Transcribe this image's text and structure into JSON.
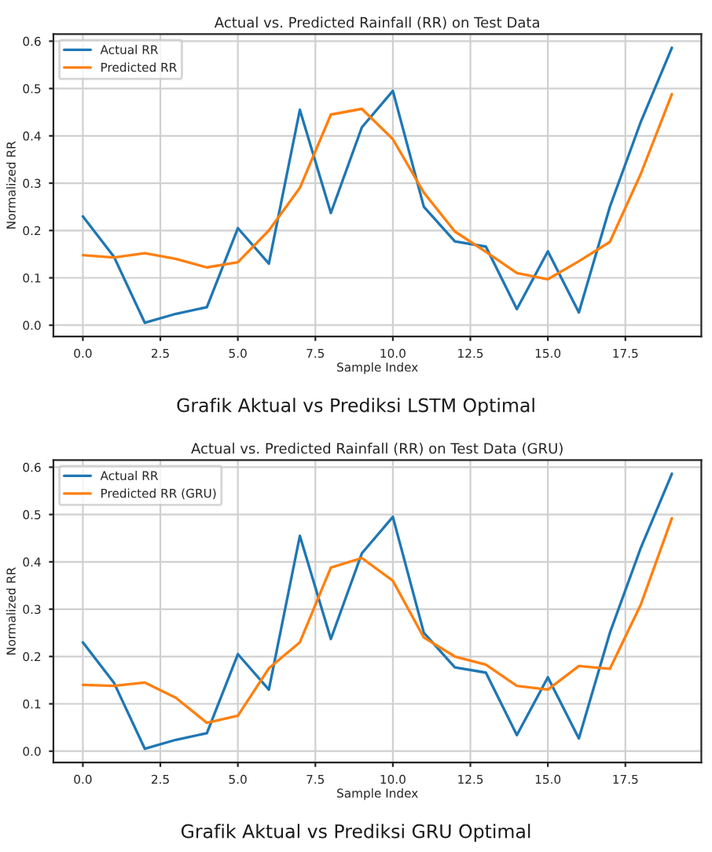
{
  "chart_data": [
    {
      "type": "line",
      "title": "Actual vs. Predicted Rainfall (RR) on Test Data",
      "xlabel": "Sample Index",
      "ylabel": "Normalized RR",
      "annotations": [
        "Grafik Aktual vs Prediksi LSTM Optimal"
      ],
      "x": [
        0,
        1,
        2,
        3,
        4,
        5,
        6,
        7,
        8,
        9,
        10,
        11,
        12,
        13,
        14,
        15,
        16,
        17,
        18,
        19
      ],
      "series": [
        {
          "name": "Actual RR",
          "color": "#1f77b4",
          "values": [
            0.23,
            0.145,
            0.005,
            0.024,
            0.038,
            0.205,
            0.13,
            0.455,
            0.237,
            0.418,
            0.495,
            0.25,
            0.177,
            0.166,
            0.034,
            0.156,
            0.027,
            0.25,
            0.43,
            0.586
          ]
        },
        {
          "name": "Predicted RR",
          "color": "#ff7f0e",
          "values": [
            0.148,
            0.143,
            0.152,
            0.14,
            0.122,
            0.133,
            0.2,
            0.29,
            0.445,
            0.457,
            0.393,
            0.28,
            0.198,
            0.155,
            0.11,
            0.097,
            0.135,
            0.176,
            0.32,
            0.488
          ]
        }
      ],
      "xlim": [
        -0.95,
        19.95
      ],
      "ylim": [
        -0.024,
        0.615
      ],
      "xticks": [
        {
          "value": 0,
          "label": "0.0"
        },
        {
          "value": 2.5,
          "label": "2.5"
        },
        {
          "value": 5,
          "label": "5.0"
        },
        {
          "value": 7.5,
          "label": "7.5"
        },
        {
          "value": 10,
          "label": "10.0"
        },
        {
          "value": 12.5,
          "label": "12.5"
        },
        {
          "value": 15,
          "label": "15.0"
        },
        {
          "value": 17.5,
          "label": "17.5"
        }
      ],
      "yticks": [
        {
          "value": 0,
          "label": "0.0"
        },
        {
          "value": 0.1,
          "label": "0.1"
        },
        {
          "value": 0.2,
          "label": "0.2"
        },
        {
          "value": 0.3,
          "label": "0.3"
        },
        {
          "value": 0.4,
          "label": "0.4"
        },
        {
          "value": 0.5,
          "label": "0.5"
        },
        {
          "value": 0.6,
          "label": "0.6"
        }
      ],
      "grid": true,
      "legend": "top left",
      "marker": "none",
      "line_style": "solid"
    },
    {
      "type": "line",
      "title": "Actual vs. Predicted Rainfall (RR) on Test Data (GRU)",
      "xlabel": "Sample Index",
      "ylabel": "Normalized RR",
      "annotations": [
        "Grafik Aktual vs Prediksi GRU Optimal"
      ],
      "x": [
        0,
        1,
        2,
        3,
        4,
        5,
        6,
        7,
        8,
        9,
        10,
        11,
        12,
        13,
        14,
        15,
        16,
        17,
        18,
        19
      ],
      "series": [
        {
          "name": "Actual RR",
          "color": "#1f77b4",
          "values": [
            0.23,
            0.145,
            0.005,
            0.024,
            0.038,
            0.205,
            0.13,
            0.455,
            0.237,
            0.418,
            0.495,
            0.25,
            0.177,
            0.166,
            0.034,
            0.156,
            0.027,
            0.25,
            0.43,
            0.586
          ]
        },
        {
          "name": "Predicted RR (GRU)",
          "color": "#ff7f0e",
          "values": [
            0.14,
            0.138,
            0.145,
            0.113,
            0.06,
            0.075,
            0.175,
            0.23,
            0.388,
            0.408,
            0.36,
            0.24,
            0.2,
            0.183,
            0.138,
            0.13,
            0.18,
            0.174,
            0.31,
            0.492
          ]
        }
      ],
      "xlim": [
        -0.95,
        19.95
      ],
      "ylim": [
        -0.024,
        0.615
      ],
      "xticks": [
        {
          "value": 0,
          "label": "0.0"
        },
        {
          "value": 2.5,
          "label": "2.5"
        },
        {
          "value": 5,
          "label": "5.0"
        },
        {
          "value": 7.5,
          "label": "7.5"
        },
        {
          "value": 10,
          "label": "10.0"
        },
        {
          "value": 12.5,
          "label": "12.5"
        },
        {
          "value": 15,
          "label": "15.0"
        },
        {
          "value": 17.5,
          "label": "17.5"
        }
      ],
      "yticks": [
        {
          "value": 0,
          "label": "0.0"
        },
        {
          "value": 0.1,
          "label": "0.1"
        },
        {
          "value": 0.2,
          "label": "0.2"
        },
        {
          "value": 0.3,
          "label": "0.3"
        },
        {
          "value": 0.4,
          "label": "0.4"
        },
        {
          "value": 0.5,
          "label": "0.5"
        },
        {
          "value": 0.6,
          "label": "0.6"
        }
      ],
      "grid": true,
      "legend": "top left",
      "marker": "none",
      "line_style": "solid"
    }
  ]
}
